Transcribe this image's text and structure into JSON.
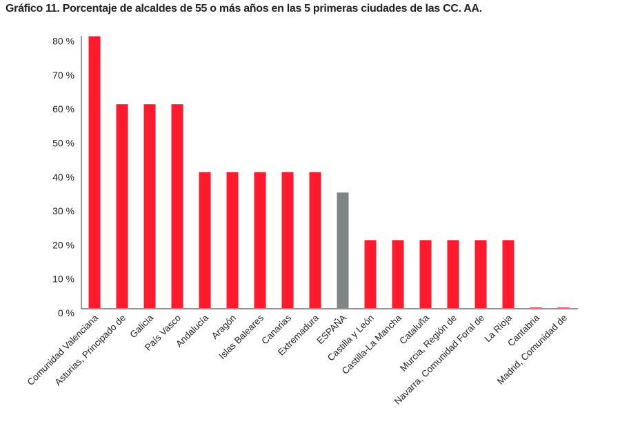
{
  "chart_data": {
    "type": "bar",
    "title": "Gráfico 11. Porcentaje de alcaldes de 55 o más años en las 5 primeras ciudades de las CC. AA.",
    "categories": [
      "Comunidad Valenciana",
      "Asturias, Principado de",
      "Galicia",
      "País Vasco",
      "Andalucía",
      "Aragón",
      "Islas Baleares",
      "Canarias",
      "Extremadura",
      "ESPAÑA",
      "Castilla y León",
      "Castilla-La Mancha",
      "Cataluña",
      "Murcia, Región de",
      "Navarra, Comunidad Foral de",
      "La Rioja",
      "Cantabria",
      "Madrid, Comunidad de"
    ],
    "values": [
      80,
      60,
      60,
      60,
      40,
      40,
      40,
      40,
      40,
      34,
      20,
      20,
      20,
      20,
      20,
      20,
      0,
      0
    ],
    "unit": "%",
    "ylim": [
      0,
      80
    ],
    "yticks": [
      "0 %",
      "10 %",
      "20 %",
      "30 %",
      "40 %",
      "50 %",
      "60 %",
      "70 %",
      "80 %"
    ],
    "grid": false,
    "colors": {
      "default": "#ff1a2d",
      "highlight": "#7f8485",
      "highlight_category": "ESPAÑA"
    }
  }
}
